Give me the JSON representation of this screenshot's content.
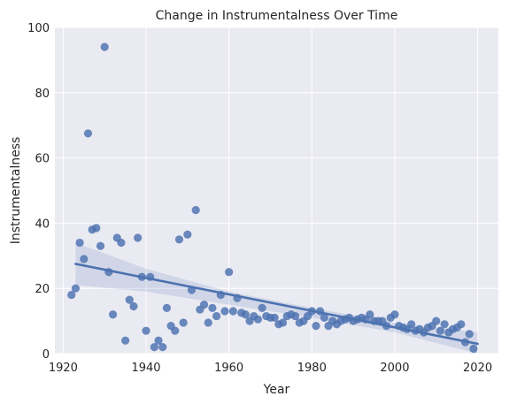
{
  "chart_data": {
    "type": "scatter",
    "title": "Change in Instrumentalness Over Time",
    "xlabel": "Year",
    "ylabel": "Instrumentalness",
    "xlim": [
      1918,
      2025
    ],
    "ylim": [
      0,
      100
    ],
    "xticks": [
      1920,
      1940,
      1960,
      1980,
      2000,
      2020
    ],
    "yticks": [
      0,
      20,
      40,
      60,
      80,
      100
    ],
    "grid": true,
    "colors": {
      "background": "#eaeaf2",
      "grid": "#ffffff",
      "points": "#4c72b0",
      "line": "#4c72b0",
      "band": "#4c72b0"
    },
    "regression": {
      "start": [
        1923,
        27.5
      ],
      "end": [
        2020,
        3.0
      ],
      "ci_upper": [
        [
          1923,
          34
        ],
        [
          1940,
          26
        ],
        [
          1960,
          19
        ],
        [
          1980,
          14
        ],
        [
          2000,
          9.5
        ],
        [
          2020,
          6.5
        ]
      ],
      "ci_lower": [
        [
          1923,
          21
        ],
        [
          1940,
          19
        ],
        [
          1960,
          15
        ],
        [
          1980,
          11
        ],
        [
          2000,
          6.5
        ],
        [
          2020,
          0
        ]
      ]
    },
    "points": [
      {
        "x": 1922,
        "y": 18
      },
      {
        "x": 1923,
        "y": 20
      },
      {
        "x": 1924,
        "y": 34
      },
      {
        "x": 1925,
        "y": 29
      },
      {
        "x": 1926,
        "y": 67.5
      },
      {
        "x": 1927,
        "y": 38
      },
      {
        "x": 1928,
        "y": 38.5
      },
      {
        "x": 1929,
        "y": 33
      },
      {
        "x": 1930,
        "y": 94
      },
      {
        "x": 1931,
        "y": 25
      },
      {
        "x": 1932,
        "y": 12
      },
      {
        "x": 1933,
        "y": 35.5
      },
      {
        "x": 1934,
        "y": 34
      },
      {
        "x": 1935,
        "y": 4
      },
      {
        "x": 1936,
        "y": 16.5
      },
      {
        "x": 1937,
        "y": 14.5
      },
      {
        "x": 1938,
        "y": 35.5
      },
      {
        "x": 1939,
        "y": 23.5
      },
      {
        "x": 1940,
        "y": 7
      },
      {
        "x": 1941,
        "y": 23.5
      },
      {
        "x": 1942,
        "y": 2
      },
      {
        "x": 1943,
        "y": 4
      },
      {
        "x": 1944,
        "y": 2
      },
      {
        "x": 1945,
        "y": 14
      },
      {
        "x": 1946,
        "y": 8.5
      },
      {
        "x": 1947,
        "y": 7
      },
      {
        "x": 1948,
        "y": 35
      },
      {
        "x": 1949,
        "y": 9.5
      },
      {
        "x": 1950,
        "y": 36.5
      },
      {
        "x": 1951,
        "y": 19.5
      },
      {
        "x": 1952,
        "y": 44
      },
      {
        "x": 1953,
        "y": 13.5
      },
      {
        "x": 1954,
        "y": 15
      },
      {
        "x": 1955,
        "y": 9.5
      },
      {
        "x": 1956,
        "y": 14
      },
      {
        "x": 1957,
        "y": 11.5
      },
      {
        "x": 1958,
        "y": 18
      },
      {
        "x": 1959,
        "y": 13
      },
      {
        "x": 1960,
        "y": 25
      },
      {
        "x": 1961,
        "y": 13
      },
      {
        "x": 1962,
        "y": 17
      },
      {
        "x": 1963,
        "y": 12.5
      },
      {
        "x": 1964,
        "y": 12
      },
      {
        "x": 1965,
        "y": 10
      },
      {
        "x": 1966,
        "y": 11.5
      },
      {
        "x": 1967,
        "y": 10.5
      },
      {
        "x": 1968,
        "y": 14
      },
      {
        "x": 1969,
        "y": 11.5
      },
      {
        "x": 1970,
        "y": 11
      },
      {
        "x": 1971,
        "y": 11
      },
      {
        "x": 1972,
        "y": 9
      },
      {
        "x": 1973,
        "y": 9.5
      },
      {
        "x": 1974,
        "y": 11.5
      },
      {
        "x": 1975,
        "y": 12
      },
      {
        "x": 1976,
        "y": 11.5
      },
      {
        "x": 1977,
        "y": 9.5
      },
      {
        "x": 1978,
        "y": 10
      },
      {
        "x": 1979,
        "y": 11.5
      },
      {
        "x": 1980,
        "y": 13
      },
      {
        "x": 1981,
        "y": 8.5
      },
      {
        "x": 1982,
        "y": 13
      },
      {
        "x": 1983,
        "y": 11
      },
      {
        "x": 1984,
        "y": 8.5
      },
      {
        "x": 1985,
        "y": 10
      },
      {
        "x": 1986,
        "y": 9
      },
      {
        "x": 1987,
        "y": 10
      },
      {
        "x": 1988,
        "y": 10.5
      },
      {
        "x": 1989,
        "y": 11
      },
      {
        "x": 1990,
        "y": 10
      },
      {
        "x": 1991,
        "y": 10.5
      },
      {
        "x": 1992,
        "y": 11
      },
      {
        "x": 1993,
        "y": 10.5
      },
      {
        "x": 1994,
        "y": 12
      },
      {
        "x": 1995,
        "y": 10
      },
      {
        "x": 1996,
        "y": 10
      },
      {
        "x": 1997,
        "y": 10
      },
      {
        "x": 1998,
        "y": 8.5
      },
      {
        "x": 1999,
        "y": 11
      },
      {
        "x": 2000,
        "y": 12
      },
      {
        "x": 2001,
        "y": 8.5
      },
      {
        "x": 2002,
        "y": 8
      },
      {
        "x": 2003,
        "y": 7.5
      },
      {
        "x": 2004,
        "y": 9
      },
      {
        "x": 2005,
        "y": 7
      },
      {
        "x": 2006,
        "y": 7.5
      },
      {
        "x": 2007,
        "y": 6.5
      },
      {
        "x": 2008,
        "y": 8
      },
      {
        "x": 2009,
        "y": 8.5
      },
      {
        "x": 2010,
        "y": 10
      },
      {
        "x": 2011,
        "y": 7
      },
      {
        "x": 2012,
        "y": 9
      },
      {
        "x": 2013,
        "y": 6.5
      },
      {
        "x": 2014,
        "y": 7.5
      },
      {
        "x": 2015,
        "y": 8
      },
      {
        "x": 2016,
        "y": 9
      },
      {
        "x": 2017,
        "y": 3.5
      },
      {
        "x": 2018,
        "y": 6
      },
      {
        "x": 2019,
        "y": 1.5
      }
    ]
  }
}
